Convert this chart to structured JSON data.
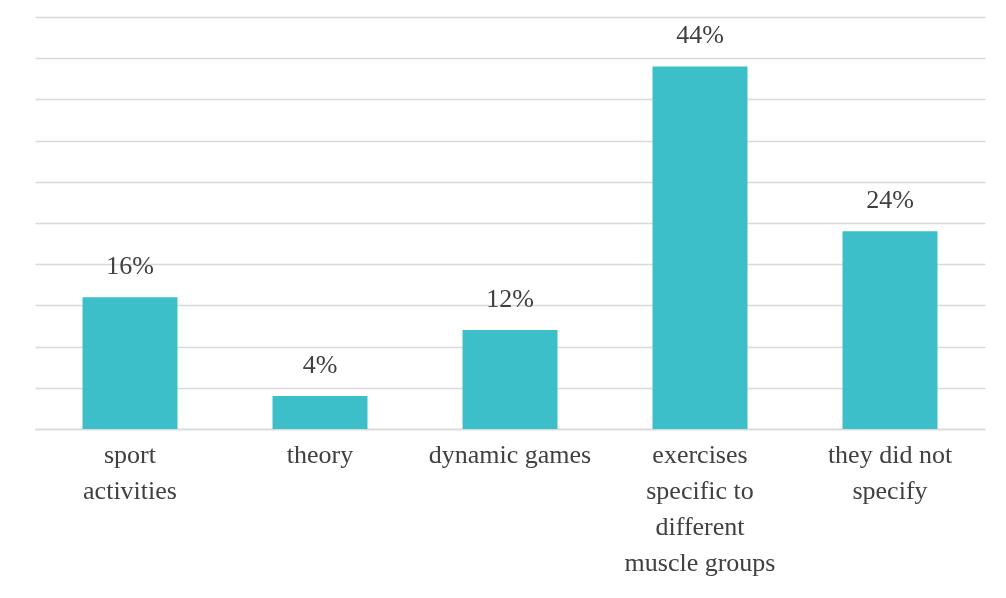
{
  "chart_data": {
    "type": "bar",
    "categories": [
      "sport activities",
      "theory",
      "dynamic games",
      "exercises specific to different muscle groups",
      "they did not specify"
    ],
    "values": [
      16,
      4,
      12,
      44,
      24
    ],
    "value_labels": [
      "16%",
      "4%",
      "12%",
      "44%",
      "24%"
    ],
    "color": "#3dbfc9",
    "relative": false,
    "ylim": [
      0,
      50
    ],
    "yticks": [
      0,
      5,
      10,
      15,
      20,
      25,
      30,
      35,
      40,
      45,
      50
    ],
    "tick_labels": "x",
    "grid": "y"
  }
}
